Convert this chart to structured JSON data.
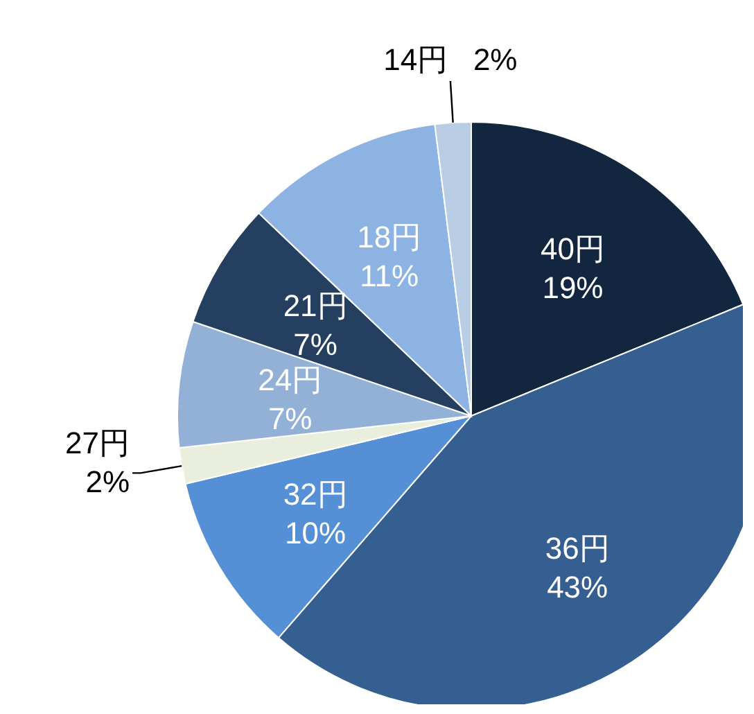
{
  "chart_data": {
    "type": "pie",
    "categories": [
      "40円",
      "36円",
      "32円",
      "27円",
      "24円",
      "21円",
      "18円",
      "14円"
    ],
    "values": [
      19,
      43,
      10,
      2,
      7,
      7,
      11,
      2
    ],
    "value_labels": [
      "19%",
      "43%",
      "10%",
      "2%",
      "7%",
      "7%",
      "11%",
      "2%"
    ],
    "colors": [
      "#12263f",
      "#355f91",
      "#5590d6",
      "#e9efdc",
      "#93b1d6",
      "#243f60",
      "#8db3e2",
      "#b8cce4"
    ],
    "legend": false
  }
}
